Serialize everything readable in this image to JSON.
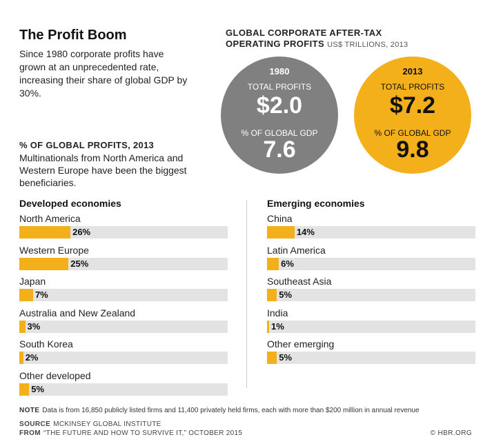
{
  "header": {
    "title": "The Profit Boom",
    "intro": "Since 1980 corporate profits have grown at an unprecedented rate, increasing their share of global GDP by 30%."
  },
  "global": {
    "title_line1": "GLOBAL CORPORATE AFTER-TAX",
    "title_line2": "OPERATING PROFITS",
    "unit": "US$ TRILLIONS, 2013",
    "profits_label": "TOTAL PROFITS",
    "gdp_label": "% OF GLOBAL GDP",
    "c1980": {
      "year": "1980",
      "profits": "$2.0",
      "gdp_share": "7.6"
    },
    "c2013": {
      "year": "2013",
      "profits": "$7.2",
      "gdp_share": "9.8"
    }
  },
  "share_section": {
    "title": "% OF GLOBAL PROFITS, 2013",
    "description": "Multinationals from North America and Western Europe have been the biggest beneficiaries."
  },
  "chart_data": {
    "type": "bar",
    "title": "% OF GLOBAL PROFITS, 2013",
    "xlim": [
      0,
      100
    ],
    "groups": [
      {
        "name": "Developed economies",
        "categories": [
          "North America",
          "Western Europe",
          "Japan",
          "Australia and New Zealand",
          "South Korea",
          "Other developed"
        ],
        "values": [
          26,
          25,
          7,
          3,
          2,
          5
        ],
        "labels": [
          "26%",
          "25%",
          "7%",
          "3%",
          "2%",
          "5%"
        ]
      },
      {
        "name": "Emerging economies",
        "categories": [
          "China",
          "Latin America",
          "Southeast Asia",
          "India",
          "Other emerging"
        ],
        "values": [
          14,
          6,
          5,
          1,
          5
        ],
        "labels": [
          "14%",
          "6%",
          "5%",
          "1%",
          "5%"
        ]
      }
    ],
    "colors": {
      "bar": "#f3b01b",
      "track": "#e3e3e3"
    }
  },
  "footer": {
    "note_label": "NOTE",
    "note": "Data is from 16,850 publicly listed firms and 11,400 privately held firms, each with more than $200 million in annual revenue",
    "source_label": "SOURCE",
    "source": "MCKINSEY GLOBAL INSTITUTE",
    "from_label": "FROM",
    "from": "“THE FUTURE AND HOW TO SURVIVE IT,” OCTOBER 2015",
    "credit": "© HBR.ORG"
  }
}
